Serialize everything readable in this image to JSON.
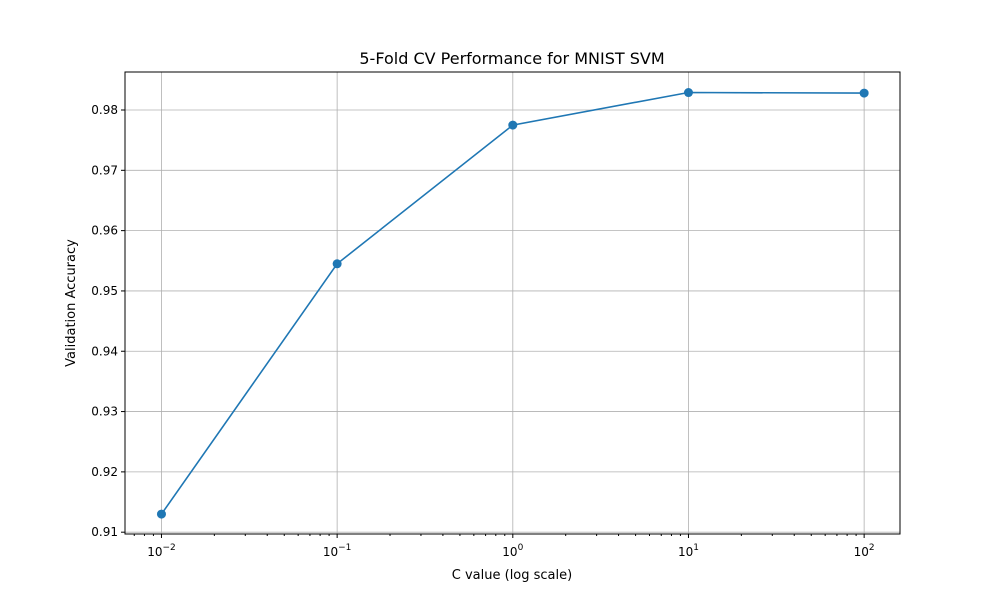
{
  "chart_data": {
    "type": "line",
    "title": "5-Fold CV Performance for MNIST SVM",
    "xlabel": "C value (log scale)",
    "ylabel": "Validation Accuracy",
    "x_scale": "log",
    "x": [
      0.01,
      0.1,
      1,
      10,
      100
    ],
    "xlim": [
      0.0062,
      160
    ],
    "x_ticks": [
      {
        "value": 0.01,
        "base": "10",
        "exp": "−2"
      },
      {
        "value": 0.1,
        "base": "10",
        "exp": "−1"
      },
      {
        "value": 1,
        "base": "10",
        "exp": "0"
      },
      {
        "value": 10,
        "base": "10",
        "exp": "1"
      },
      {
        "value": 100,
        "base": "10",
        "exp": "2"
      }
    ],
    "series": [
      {
        "values": [
          0.913,
          0.9545,
          0.9775,
          0.9829,
          0.9828
        ],
        "color": "#1f77b4",
        "marker": "circle"
      }
    ],
    "ylim": [
      0.9097,
      0.9863
    ],
    "y_ticks": [
      {
        "value": 0.91,
        "label": "0.91"
      },
      {
        "value": 0.92,
        "label": "0.92"
      },
      {
        "value": 0.93,
        "label": "0.93"
      },
      {
        "value": 0.94,
        "label": "0.94"
      },
      {
        "value": 0.95,
        "label": "0.95"
      },
      {
        "value": 0.96,
        "label": "0.96"
      },
      {
        "value": 0.97,
        "label": "0.97"
      },
      {
        "value": 0.98,
        "label": "0.98"
      }
    ],
    "grid": true,
    "legend": "none"
  }
}
